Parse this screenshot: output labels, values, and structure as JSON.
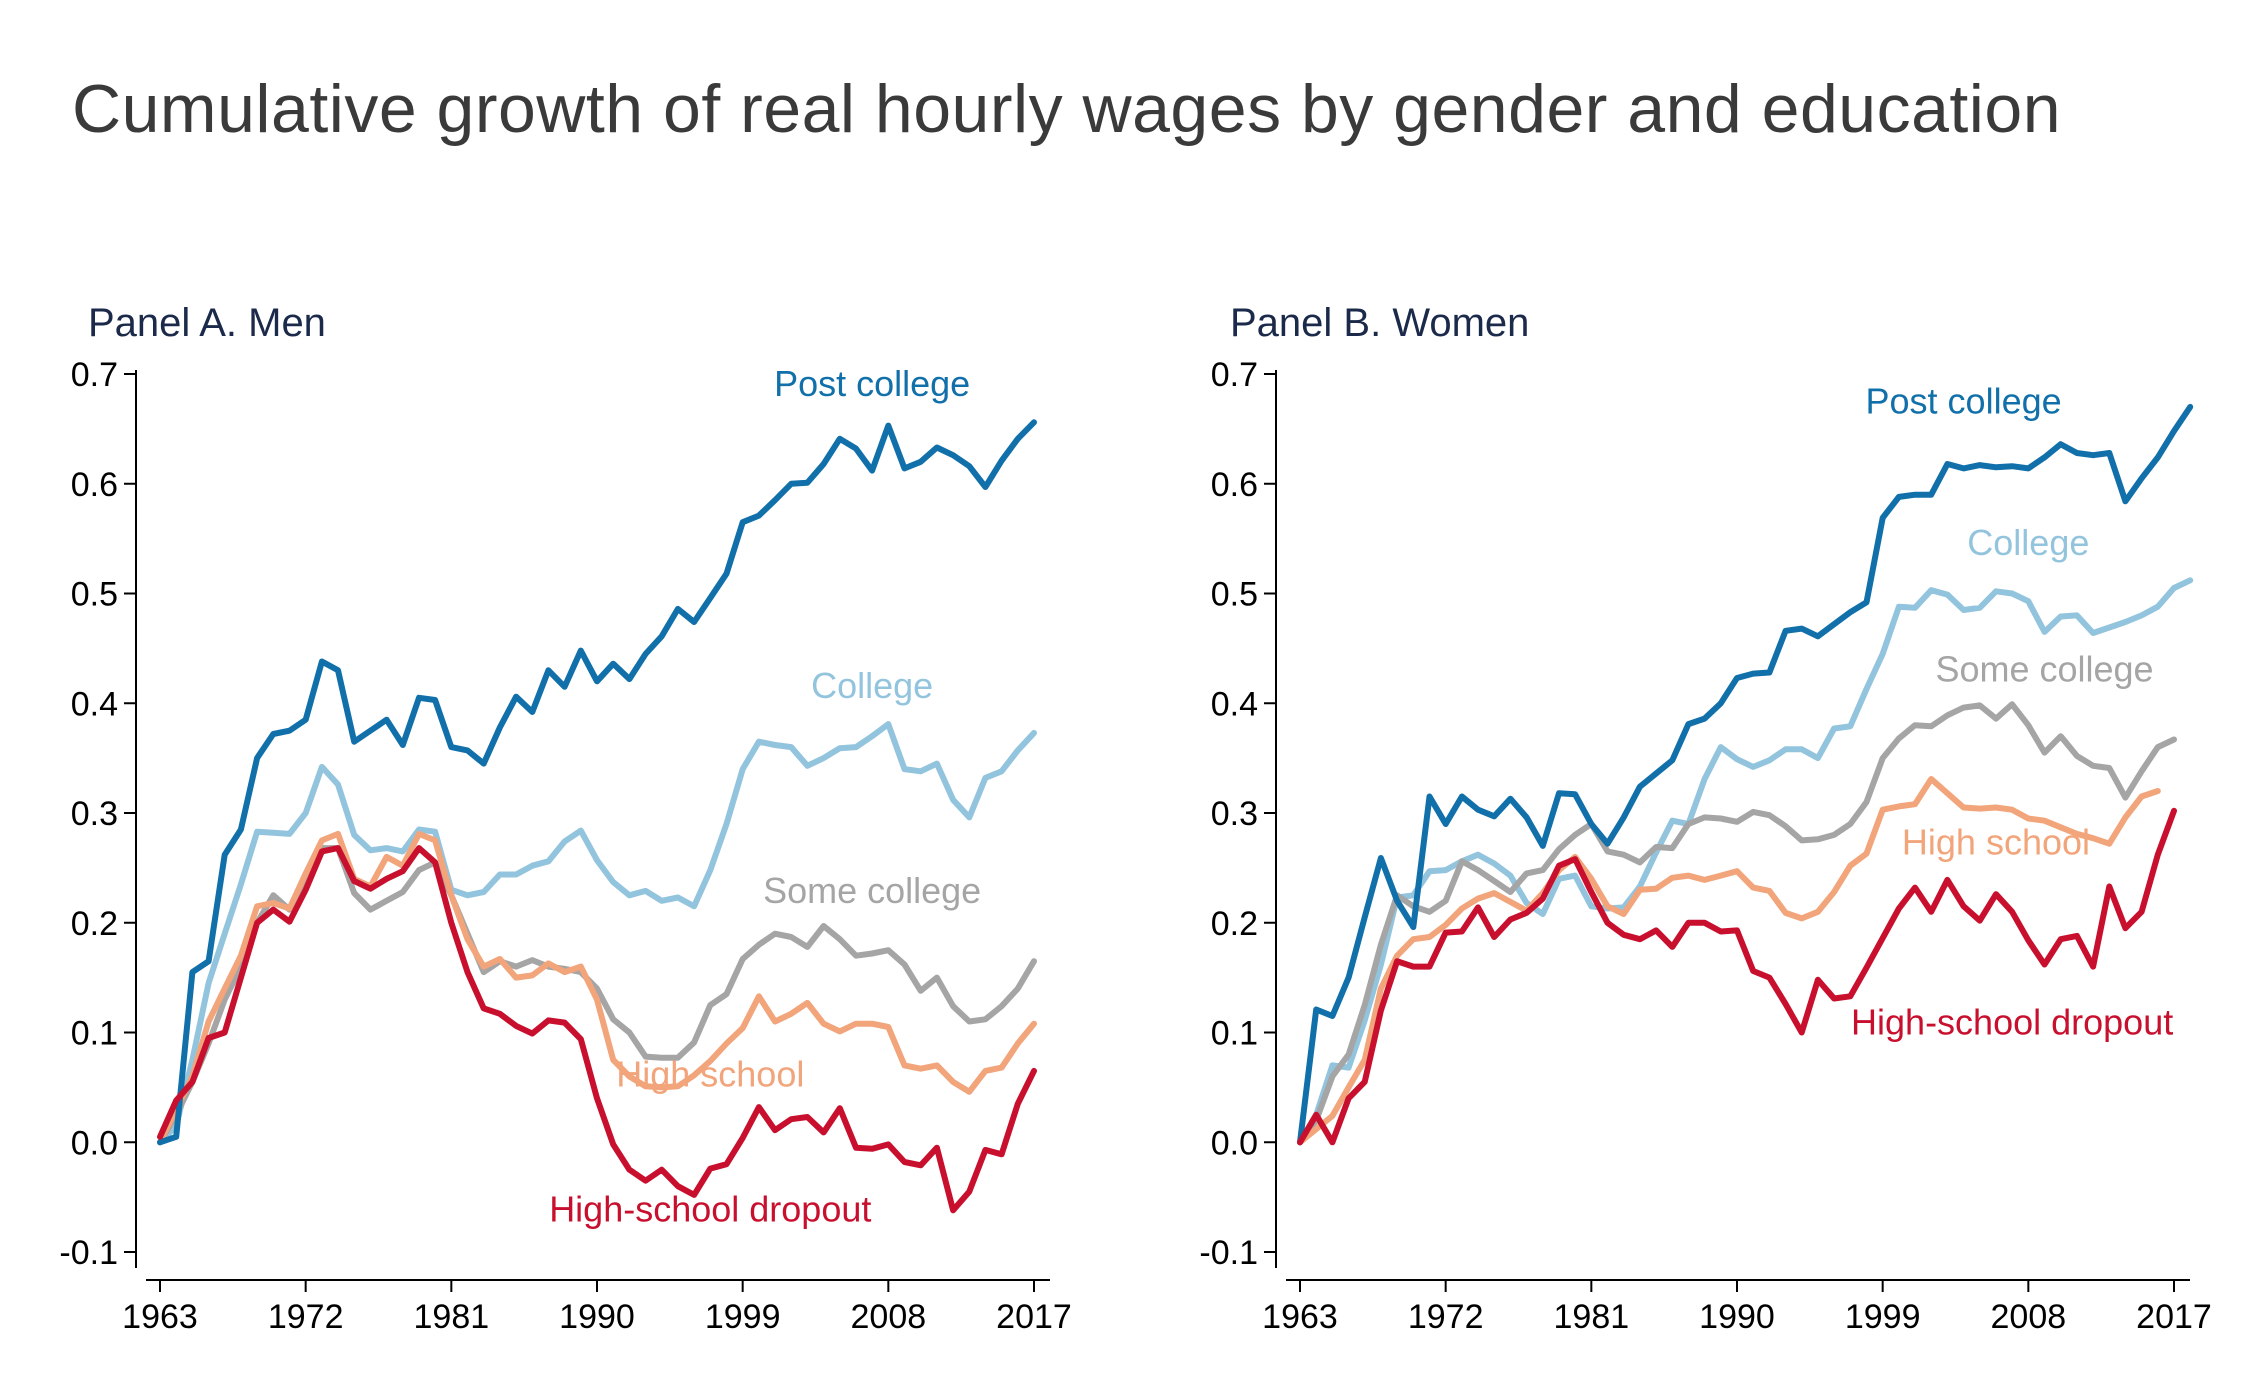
{
  "title": "Cumulative growth of real hourly wages by gender and education",
  "chart_data": [
    {
      "type": "line",
      "title": "Panel A. Men",
      "xlabel": "",
      "ylabel": "",
      "xlim": [
        1963,
        2017
      ],
      "ylim": [
        -0.1,
        0.7
      ],
      "xticks": [
        "1963",
        "1972",
        "1981",
        "1990",
        "1999",
        "2008",
        "2017"
      ],
      "yticks": [
        "-0.1",
        "0.0",
        "0.1",
        "0.2",
        "0.3",
        "0.4",
        "0.5",
        "0.6",
        "0.7"
      ],
      "x_start": 1963,
      "series": [
        {
          "name": "Post college",
          "color": "#1170aa",
          "label": {
            "x": 2007,
            "y": 0.68
          },
          "values": [
            0.0,
            0.005,
            0.155,
            0.165,
            0.262,
            0.285,
            0.35,
            0.372,
            0.375,
            0.385,
            0.438,
            0.43,
            0.365,
            0.375,
            0.385,
            0.362,
            0.405,
            0.403,
            0.36,
            0.357,
            0.345,
            0.378,
            0.406,
            0.392,
            0.43,
            0.415,
            0.448,
            0.42,
            0.436,
            0.422,
            0.445,
            0.461,
            0.486,
            0.474,
            0.496,
            0.518,
            0.565,
            0.571,
            0.585,
            0.6,
            0.601,
            0.618,
            0.641,
            0.632,
            0.612,
            0.653,
            0.614,
            0.62,
            0.633,
            0.626,
            0.616,
            0.597,
            0.621,
            0.641,
            0.656
          ]
        },
        {
          "name": "College",
          "color": "#93c4de",
          "label": {
            "x": 2007,
            "y": 0.405
          },
          "values": [
            0.0,
            0.015,
            0.075,
            0.145,
            0.19,
            0.235,
            0.283,
            0.282,
            0.281,
            0.3,
            0.342,
            0.326,
            0.28,
            0.266,
            0.268,
            0.265,
            0.285,
            0.283,
            0.23,
            0.225,
            0.228,
            0.244,
            0.244,
            0.252,
            0.256,
            0.274,
            0.284,
            0.257,
            0.237,
            0.225,
            0.229,
            0.22,
            0.223,
            0.215,
            0.248,
            0.29,
            0.34,
            0.365,
            0.362,
            0.36,
            0.343,
            0.35,
            0.359,
            0.36,
            0.37,
            0.381,
            0.34,
            0.338,
            0.345,
            0.312,
            0.296,
            0.332,
            0.338,
            0.357,
            0.373
          ]
        },
        {
          "name": "Some college",
          "color": "#a5a5a5",
          "label": {
            "x": 2007,
            "y": 0.218
          },
          "values": [
            0.0,
            0.025,
            0.055,
            0.09,
            0.13,
            0.16,
            0.2,
            0.225,
            0.212,
            0.24,
            0.268,
            0.268,
            0.227,
            0.212,
            0.22,
            0.228,
            0.248,
            0.255,
            0.225,
            0.19,
            0.155,
            0.165,
            0.16,
            0.166,
            0.16,
            0.158,
            0.155,
            0.14,
            0.112,
            0.1,
            0.078,
            0.077,
            0.077,
            0.091,
            0.125,
            0.135,
            0.167,
            0.18,
            0.19,
            0.187,
            0.178,
            0.197,
            0.185,
            0.17,
            0.172,
            0.175,
            0.162,
            0.138,
            0.15,
            0.124,
            0.11,
            0.112,
            0.124,
            0.14,
            0.165
          ]
        },
        {
          "name": "High school",
          "color": "#f2a47a",
          "label": {
            "x": 1997,
            "y": 0.051
          },
          "values": [
            0.0,
            0.03,
            0.06,
            0.11,
            0.14,
            0.17,
            0.215,
            0.218,
            0.213,
            0.245,
            0.275,
            0.281,
            0.24,
            0.233,
            0.26,
            0.252,
            0.281,
            0.275,
            0.225,
            0.185,
            0.16,
            0.167,
            0.15,
            0.152,
            0.163,
            0.155,
            0.16,
            0.13,
            0.075,
            0.06,
            0.051,
            0.05,
            0.051,
            0.061,
            0.074,
            0.09,
            0.104,
            0.133,
            0.11,
            0.117,
            0.127,
            0.108,
            0.101,
            0.108,
            0.108,
            0.105,
            0.07,
            0.067,
            0.07,
            0.055,
            0.046,
            0.065,
            0.068,
            0.09,
            0.108
          ]
        },
        {
          "name": "High-school dropout",
          "color": "#c8102e",
          "label": {
            "x": 1997,
            "y": -0.072
          },
          "values": [
            0.005,
            0.038,
            0.055,
            0.095,
            0.1,
            0.15,
            0.2,
            0.212,
            0.201,
            0.23,
            0.265,
            0.268,
            0.238,
            0.231,
            0.24,
            0.247,
            0.268,
            0.255,
            0.2,
            0.155,
            0.122,
            0.117,
            0.106,
            0.099,
            0.111,
            0.109,
            0.094,
            0.04,
            -0.002,
            -0.025,
            -0.035,
            -0.025,
            -0.04,
            -0.048,
            -0.024,
            -0.02,
            0.004,
            0.032,
            0.011,
            0.021,
            0.023,
            0.009,
            0.031,
            -0.005,
            -0.006,
            -0.002,
            -0.018,
            -0.021,
            -0.005,
            -0.062,
            -0.045,
            -0.007,
            -0.011,
            0.035,
            0.065
          ]
        }
      ]
    },
    {
      "type": "line",
      "title": "Panel B. Women",
      "xlabel": "",
      "ylabel": "",
      "xlim": [
        1963,
        2017
      ],
      "ylim": [
        -0.1,
        0.7
      ],
      "xticks": [
        "1963",
        "1972",
        "1981",
        "1990",
        "1999",
        "2008",
        "2017"
      ],
      "yticks": [
        "-0.1",
        "0.0",
        "0.1",
        "0.2",
        "0.3",
        "0.4",
        "0.5",
        "0.6",
        "0.7"
      ],
      "x_start": 1963,
      "series": [
        {
          "name": "Post college",
          "color": "#1170aa",
          "label": {
            "x": 2004,
            "y": 0.664
          },
          "values": [
            0.0,
            0.121,
            0.115,
            0.15,
            0.205,
            0.259,
            0.22,
            0.196,
            0.315,
            0.29,
            0.315,
            0.303,
            0.297,
            0.313,
            0.296,
            0.27,
            0.318,
            0.317,
            0.29,
            0.272,
            0.296,
            0.324,
            0.336,
            0.348,
            0.381,
            0.386,
            0.4,
            0.423,
            0.427,
            0.428,
            0.466,
            0.468,
            0.461,
            0.472,
            0.483,
            0.492,
            0.569,
            0.588,
            0.59,
            0.59,
            0.618,
            0.614,
            0.617,
            0.615,
            0.616,
            0.614,
            0.624,
            0.636,
            0.628,
            0.626,
            0.628,
            0.584,
            0.605,
            0.624,
            0.648,
            0.67
          ]
        },
        {
          "name": "College",
          "color": "#93c4de",
          "label": {
            "x": 2008,
            "y": 0.535
          },
          "values": [
            0.0,
            0.025,
            0.07,
            0.068,
            0.111,
            0.162,
            0.223,
            0.225,
            0.247,
            0.248,
            0.256,
            0.262,
            0.254,
            0.243,
            0.218,
            0.208,
            0.24,
            0.243,
            0.215,
            0.213,
            0.214,
            0.233,
            0.264,
            0.293,
            0.29,
            0.331,
            0.36,
            0.349,
            0.342,
            0.348,
            0.358,
            0.358,
            0.35,
            0.377,
            0.379,
            0.413,
            0.445,
            0.488,
            0.487,
            0.503,
            0.499,
            0.485,
            0.487,
            0.502,
            0.5,
            0.493,
            0.465,
            0.479,
            0.48,
            0.464,
            0.469,
            0.474,
            0.48,
            0.488,
            0.505,
            0.512
          ]
        },
        {
          "name": "Some college",
          "color": "#a5a5a5",
          "label": {
            "x": 2009,
            "y": 0.42
          },
          "values": [
            0.0,
            0.02,
            0.06,
            0.08,
            0.125,
            0.18,
            0.225,
            0.215,
            0.21,
            0.22,
            0.256,
            0.248,
            0.238,
            0.228,
            0.245,
            0.248,
            0.267,
            0.28,
            0.29,
            0.265,
            0.262,
            0.255,
            0.269,
            0.268,
            0.29,
            0.296,
            0.295,
            0.292,
            0.301,
            0.298,
            0.288,
            0.275,
            0.276,
            0.28,
            0.29,
            0.31,
            0.35,
            0.368,
            0.38,
            0.379,
            0.389,
            0.396,
            0.398,
            0.386,
            0.399,
            0.38,
            0.355,
            0.37,
            0.352,
            0.343,
            0.341,
            0.314,
            0.338,
            0.36,
            0.367
          ]
        },
        {
          "name": "High school",
          "color": "#f2a47a",
          "label": {
            "x": 2006,
            "y": 0.262
          },
          "values": [
            0.0,
            0.012,
            0.024,
            0.05,
            0.075,
            0.14,
            0.17,
            0.185,
            0.187,
            0.198,
            0.213,
            0.222,
            0.227,
            0.219,
            0.211,
            0.227,
            0.248,
            0.26,
            0.24,
            0.215,
            0.208,
            0.23,
            0.231,
            0.241,
            0.243,
            0.239,
            0.243,
            0.247,
            0.232,
            0.229,
            0.209,
            0.204,
            0.21,
            0.228,
            0.252,
            0.263,
            0.303,
            0.306,
            0.308,
            0.331,
            0.318,
            0.305,
            0.304,
            0.305,
            0.303,
            0.295,
            0.293,
            0.287,
            0.281,
            0.277,
            0.272,
            0.296,
            0.315,
            0.32
          ]
        },
        {
          "name": "High-school dropout",
          "color": "#c8102e",
          "label": {
            "x": 2007,
            "y": 0.098
          },
          "values": [
            0.0,
            0.025,
            0.0,
            0.04,
            0.055,
            0.12,
            0.165,
            0.16,
            0.16,
            0.191,
            0.192,
            0.214,
            0.187,
            0.203,
            0.209,
            0.222,
            0.252,
            0.258,
            0.228,
            0.2,
            0.189,
            0.185,
            0.193,
            0.178,
            0.2,
            0.2,
            0.192,
            0.193,
            0.156,
            0.15,
            0.126,
            0.1,
            0.148,
            0.131,
            0.133,
            0.159,
            0.186,
            0.213,
            0.232,
            0.21,
            0.239,
            0.215,
            0.202,
            0.226,
            0.21,
            0.184,
            0.162,
            0.185,
            0.188,
            0.16,
            0.233,
            0.195,
            0.21,
            0.262,
            0.302
          ]
        }
      ]
    }
  ]
}
